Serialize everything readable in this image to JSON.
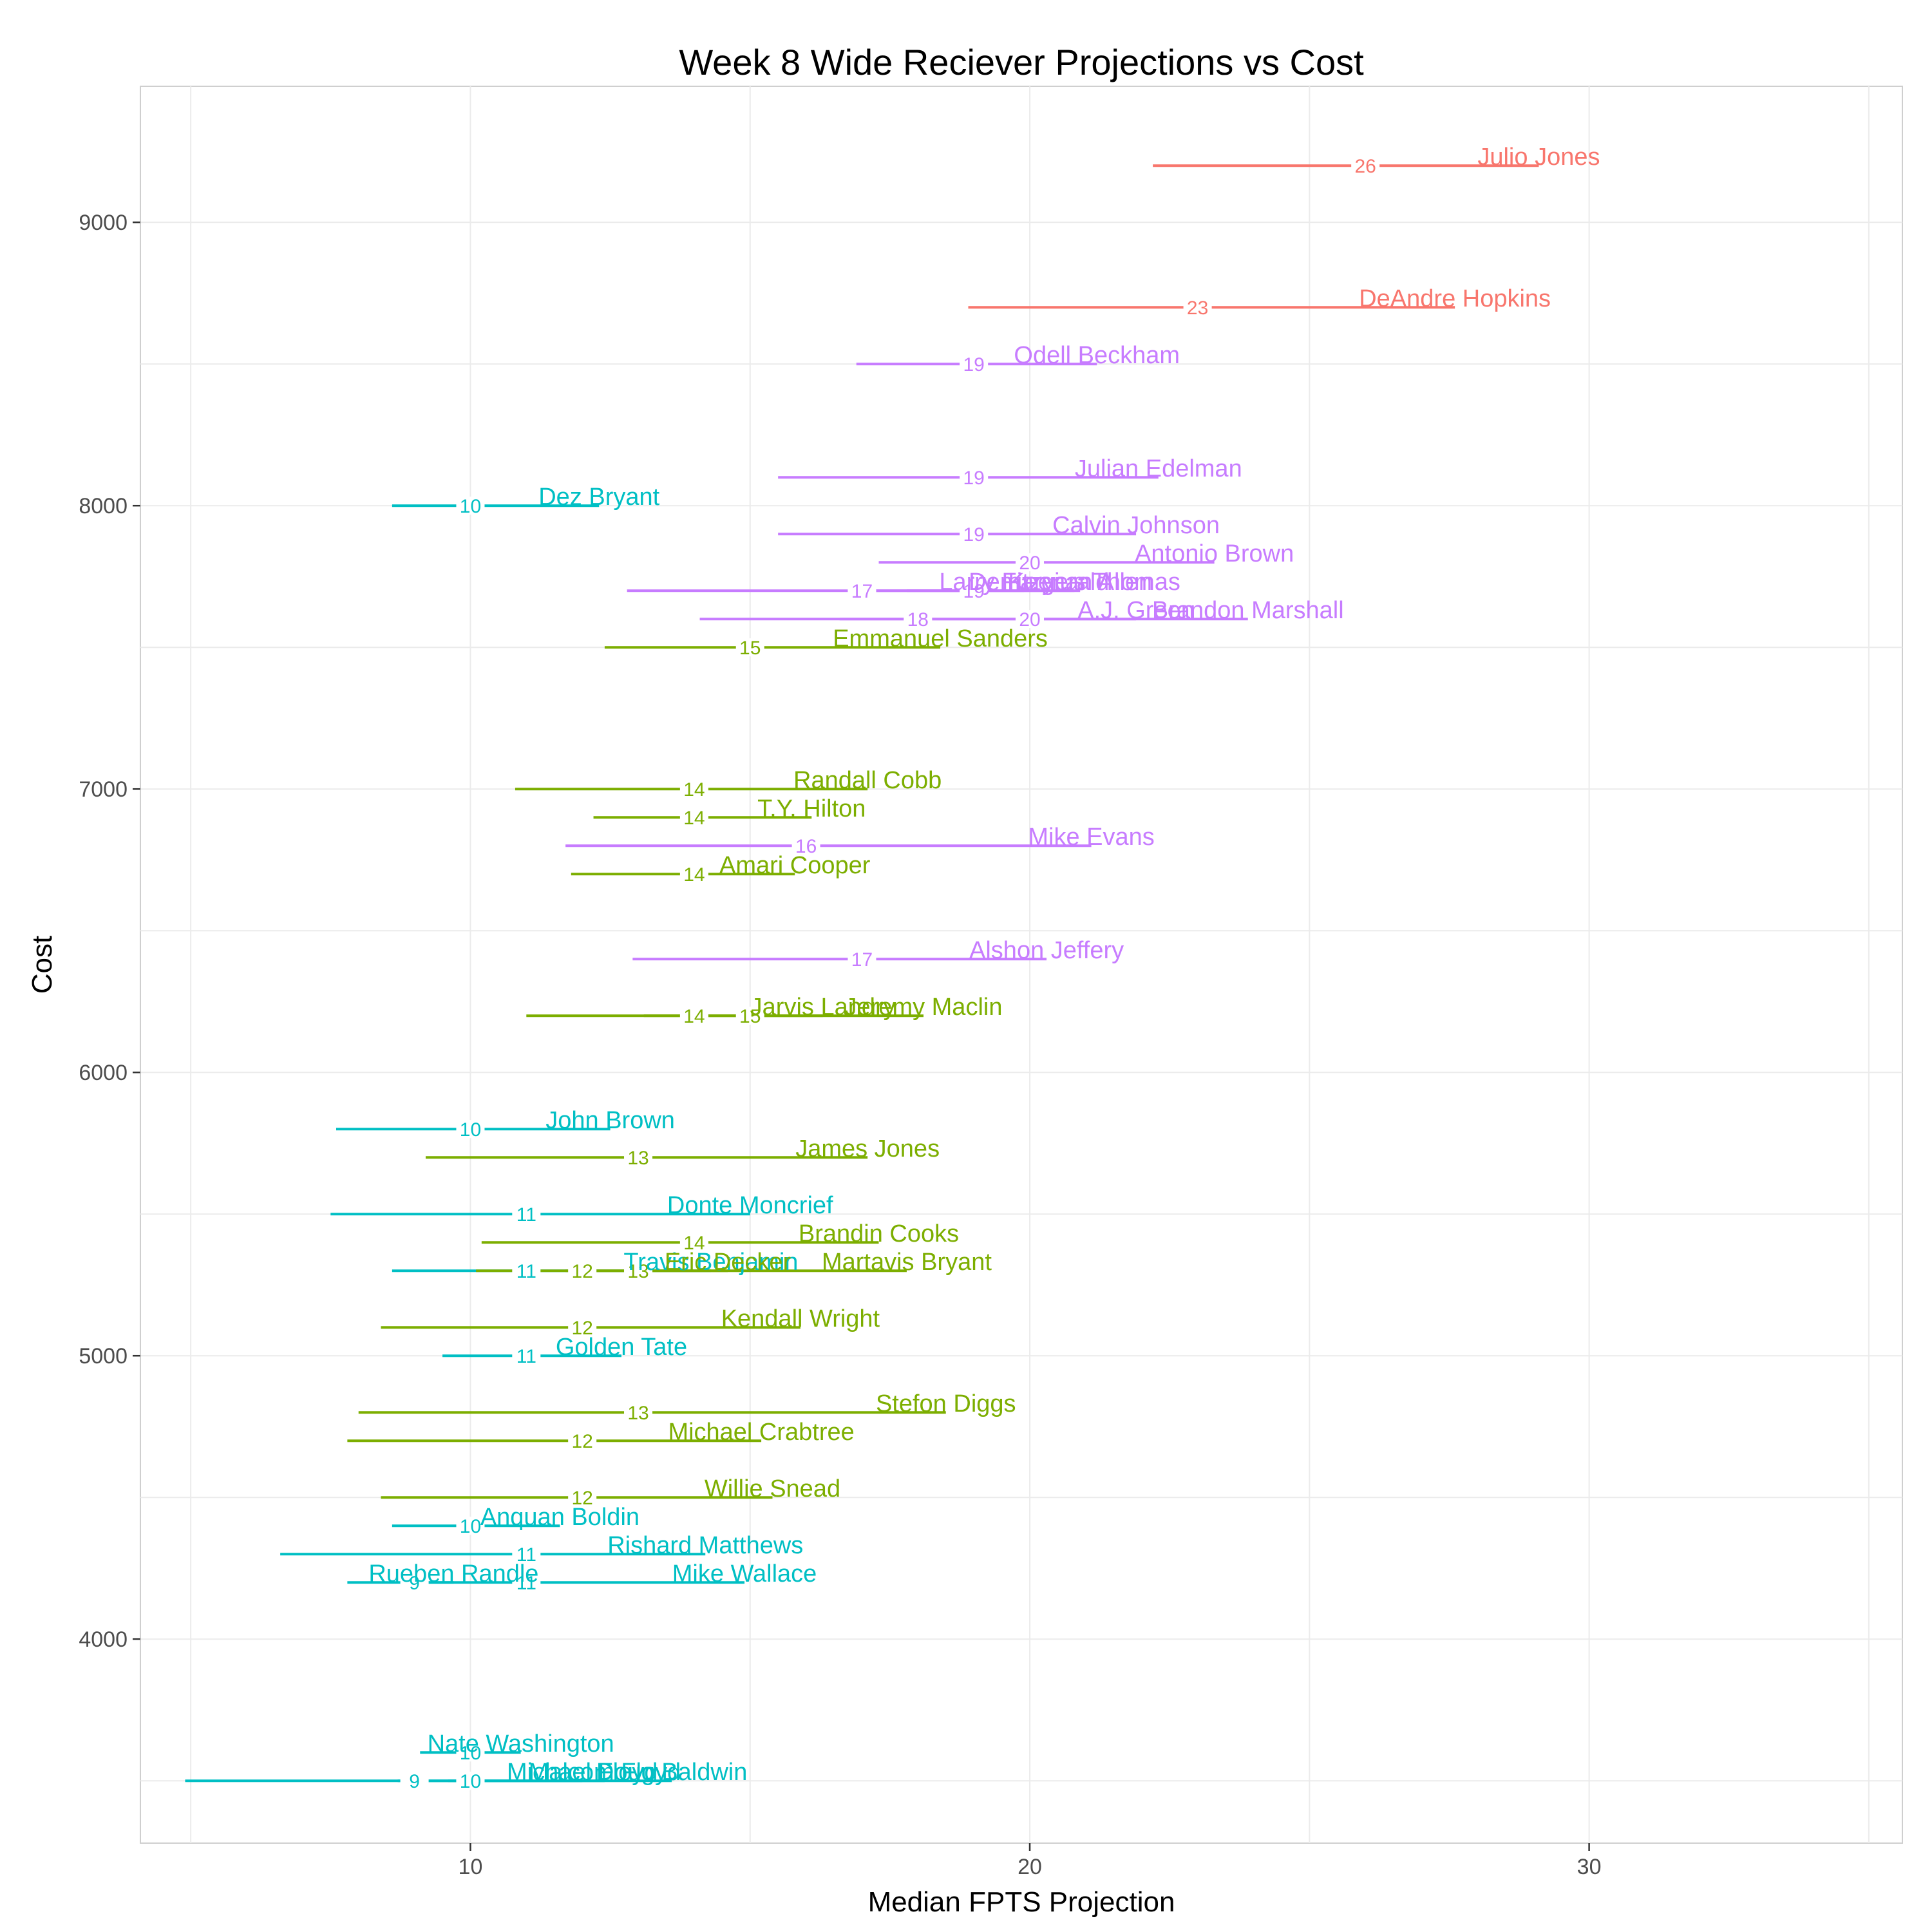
{
  "chart_data": {
    "type": "range-segment",
    "title": "Week 8 Wide Reciever Projections vs Cost",
    "xlabel": "Median FPTS Projection",
    "ylabel": "Cost",
    "xlim": [
      4.1,
      35.6
    ],
    "ylim": [
      3280,
      9480
    ],
    "x_ticks": [
      10,
      20,
      30
    ],
    "y_ticks": [
      4000,
      5000,
      6000,
      7000,
      8000,
      9000
    ],
    "grid": true,
    "legend": "none",
    "colors": {
      "red": "#F8766D",
      "purple": "#C77CFF",
      "green": "#7CAE00",
      "cyan": "#00BFC4"
    },
    "players": [
      {
        "name": "Julio Jones",
        "cost": 9200,
        "low": 22.2,
        "high": 29.1,
        "median": 26,
        "color": "red"
      },
      {
        "name": "DeAndre Hopkins",
        "cost": 8700,
        "low": 18.9,
        "high": 27.6,
        "median": 23,
        "color": "red"
      },
      {
        "name": "Odell Beckham",
        "cost": 8500,
        "low": 16.9,
        "high": 21.2,
        "median": 19,
        "color": "purple"
      },
      {
        "name": "Julian Edelman",
        "cost": 8100,
        "low": 15.5,
        "high": 22.3,
        "median": 19,
        "color": "purple"
      },
      {
        "name": "Dez Bryant",
        "cost": 8000,
        "low": 8.6,
        "high": 12.3,
        "median": 10,
        "color": "cyan"
      },
      {
        "name": "Calvin Johnson",
        "cost": 7900,
        "low": 15.5,
        "high": 21.9,
        "median": 19,
        "color": "purple"
      },
      {
        "name": "Antonio Brown",
        "cost": 7800,
        "low": 17.3,
        "high": 23.3,
        "median": 20,
        "color": "purple"
      },
      {
        "name": "Larry Fitzgerald",
        "cost": 7700,
        "low": 17.8,
        "high": 19.9,
        "median": 17,
        "color": "purple"
      },
      {
        "name": "Demaryius Thomas",
        "cost": 7700,
        "low": 16.8,
        "high": 20.8,
        "median": 19,
        "color": "purple"
      },
      {
        "name": "Keenan Allen",
        "cost": 7700,
        "low": 12.8,
        "high": 20.9,
        "median": 17,
        "color": "purple"
      },
      {
        "name": "A.J. Green",
        "cost": 7600,
        "low": 16.6,
        "high": 21.9,
        "median": 20,
        "color": "purple"
      },
      {
        "name": "Brandon Marshall",
        "cost": 7600,
        "low": 14.1,
        "high": 23.9,
        "median": 18,
        "color": "purple"
      },
      {
        "name": "Emmanuel Sanders",
        "cost": 7500,
        "low": 12.4,
        "high": 18.4,
        "median": 15,
        "color": "green"
      },
      {
        "name": "Randall Cobb",
        "cost": 7000,
        "low": 10.8,
        "high": 17.1,
        "median": 14,
        "color": "green"
      },
      {
        "name": "T.Y. Hilton",
        "cost": 6900,
        "low": 12.2,
        "high": 16.1,
        "median": 14,
        "color": "green"
      },
      {
        "name": "Mike Evans",
        "cost": 6800,
        "low": 11.7,
        "high": 21.1,
        "median": 16,
        "color": "purple"
      },
      {
        "name": "Amari Cooper",
        "cost": 6700,
        "low": 11.8,
        "high": 15.8,
        "median": 14,
        "color": "green"
      },
      {
        "name": "Alshon Jeffery",
        "cost": 6400,
        "low": 12.9,
        "high": 20.3,
        "median": 17,
        "color": "purple"
      },
      {
        "name": "Jarvis Landry",
        "cost": 6200,
        "low": 11.0,
        "high": 16.3,
        "median": 14,
        "color": "green"
      },
      {
        "name": "Jeremy Maclin",
        "cost": 6200,
        "low": 13.1,
        "high": 18.1,
        "median": 15,
        "color": "green"
      },
      {
        "name": "John Brown",
        "cost": 5800,
        "low": 7.6,
        "high": 12.5,
        "median": 10,
        "color": "cyan"
      },
      {
        "name": "James Jones",
        "cost": 5700,
        "low": 9.2,
        "high": 17.1,
        "median": 13,
        "color": "green"
      },
      {
        "name": "Donte Moncrief",
        "cost": 5500,
        "low": 7.5,
        "high": 15.0,
        "median": 11,
        "color": "cyan"
      },
      {
        "name": "Brandin Cooks",
        "cost": 5400,
        "low": 10.2,
        "high": 17.3,
        "median": 14,
        "color": "green"
      },
      {
        "name": "Travis Benjamin",
        "cost": 5300,
        "low": 8.6,
        "high": 14.3,
        "median": 11,
        "color": "cyan"
      },
      {
        "name": "Eric Decker",
        "cost": 5300,
        "low": 11.7,
        "high": 14.6,
        "median": 12,
        "color": "green"
      },
      {
        "name": "Martavis Bryant",
        "cost": 5300,
        "low": 10.1,
        "high": 17.8,
        "median": 13,
        "color": "green"
      },
      {
        "name": "Kendall Wright",
        "cost": 5100,
        "low": 8.4,
        "high": 15.9,
        "median": 12,
        "color": "green"
      },
      {
        "name": "Golden Tate",
        "cost": 5000,
        "low": 9.5,
        "high": 12.7,
        "median": 11,
        "color": "cyan"
      },
      {
        "name": "Stefon Diggs",
        "cost": 4800,
        "low": 8.0,
        "high": 18.5,
        "median": 13,
        "color": "green"
      },
      {
        "name": "Michael Crabtree",
        "cost": 4700,
        "low": 7.8,
        "high": 15.2,
        "median": 12,
        "color": "green"
      },
      {
        "name": "Willie Snead",
        "cost": 4500,
        "low": 8.4,
        "high": 15.4,
        "median": 12,
        "color": "green"
      },
      {
        "name": "Anquan Boldin",
        "cost": 4400,
        "low": 8.6,
        "high": 11.6,
        "median": 10,
        "color": "cyan"
      },
      {
        "name": "Rishard Matthews",
        "cost": 4300,
        "low": 6.6,
        "high": 14.2,
        "median": 11,
        "color": "cyan"
      },
      {
        "name": "Rueben Randle",
        "cost": 4200,
        "low": 7.8,
        "high": 9.7,
        "median": 9,
        "color": "cyan"
      },
      {
        "name": "Mike Wallace",
        "cost": 4200,
        "low": 9.1,
        "high": 14.9,
        "median": 11,
        "color": "cyan"
      },
      {
        "name": "Nate Washington",
        "cost": 3600,
        "low": 9.1,
        "high": 10.9,
        "median": 10,
        "color": "cyan"
      },
      {
        "name": "Malcom Floyd",
        "cost": 3500,
        "low": 4.9,
        "high": 12.4,
        "median": 9,
        "color": "cyan"
      },
      {
        "name": "Michael Floyd",
        "cost": 3500,
        "low": 8.7,
        "high": 12.0,
        "median": 10,
        "color": "cyan"
      },
      {
        "name": "Doug Baldwin",
        "cost": 3500,
        "low": 9.6,
        "high": 13.6,
        "median": 10,
        "color": "cyan"
      }
    ]
  }
}
